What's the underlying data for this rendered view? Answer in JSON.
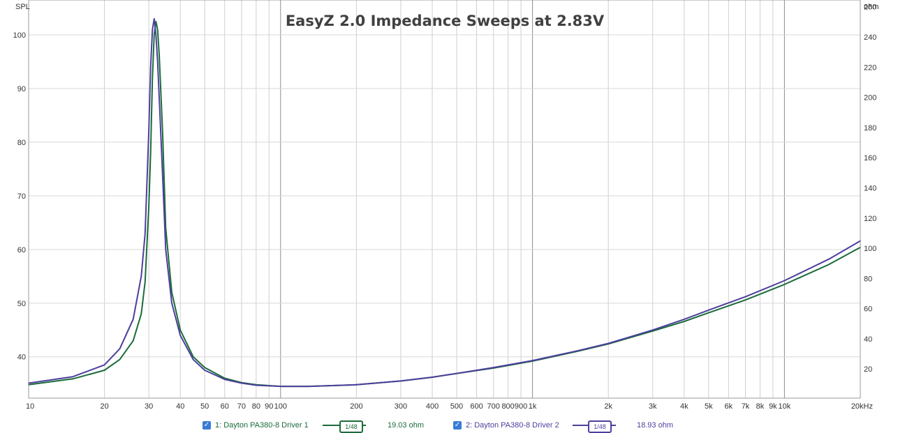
{
  "chart_data": {
    "type": "line",
    "title": "EasyZ 2.0 Impedance Sweeps at 2.83V",
    "left_axis": {
      "label": "SPL",
      "ylim": [
        32.3,
        106.5
      ],
      "ticks": [
        40,
        50,
        60,
        70,
        80,
        90,
        100
      ],
      "tick_labels": [
        "40",
        "50",
        "60",
        "70",
        "80",
        "90",
        "100"
      ]
    },
    "right_axis": {
      "label": "ohm",
      "ylim": [
        0.7,
        264.5
      ],
      "ticks": [
        20,
        40,
        60,
        80,
        100,
        120,
        140,
        160,
        180,
        200,
        220,
        240,
        260
      ],
      "tick_labels": [
        "20",
        "40",
        "60",
        "80",
        "100",
        "120",
        "140",
        "160",
        "180",
        "200",
        "220",
        "240",
        "260"
      ]
    },
    "x_axis": {
      "scale": "log",
      "unit": "Hz",
      "xlim": [
        10,
        20000
      ],
      "labeled_ticks": [
        10,
        20,
        30,
        40,
        50,
        60,
        70,
        80,
        90,
        100,
        200,
        300,
        400,
        500,
        600,
        700,
        800,
        900,
        1000,
        2000,
        3000,
        4000,
        5000,
        6000,
        7000,
        8000,
        9000,
        10000,
        20000
      ],
      "tick_labels": [
        "10",
        "20",
        "30",
        "40",
        "50",
        "60",
        "70",
        "80",
        "90",
        "100",
        "200",
        "300",
        "400",
        "500",
        "600",
        "700",
        "800",
        "900",
        "1k",
        "2k",
        "3k",
        "4k",
        "5k",
        "6k",
        "7k",
        "8k",
        "9k",
        "10k",
        "20kHz"
      ]
    },
    "grid": true,
    "series": [
      {
        "name": "1: Dayton PA380-8 Driver 1",
        "color": "#1a6b3a",
        "smoothing": "1/48",
        "readout": "19.03 ohm",
        "x": [
          10,
          15,
          20,
          23,
          26,
          28,
          29,
          30,
          30.5,
          31,
          31.5,
          32,
          32.5,
          33,
          34,
          35,
          37,
          40,
          45,
          50,
          60,
          70,
          80,
          100,
          130,
          200,
          300,
          400,
          500,
          700,
          1000,
          1500,
          2000,
          3000,
          4000,
          5000,
          7000,
          10000,
          15000,
          20000
        ],
        "y": [
          34.8,
          35.9,
          37.5,
          39.5,
          43,
          48,
          54,
          68,
          78,
          92,
          100,
          102.5,
          101,
          96,
          82,
          64,
          52,
          45,
          40,
          38,
          36,
          35.2,
          34.8,
          34.5,
          34.5,
          34.8,
          35.5,
          36.2,
          36.9,
          37.9,
          39.2,
          41,
          42.4,
          44.8,
          46.6,
          48.2,
          50.6,
          53.5,
          57.2,
          60.4
        ]
      },
      {
        "name": "2: Dayton PA380-8 Driver 2",
        "color": "#4b3f9c",
        "smoothing": "1/48",
        "readout": "18.93 ohm",
        "x": [
          10,
          15,
          20,
          23,
          26,
          28,
          29,
          30,
          30.5,
          31,
          31.5,
          32,
          32.5,
          33,
          34,
          35,
          37,
          40,
          45,
          50,
          60,
          70,
          80,
          100,
          130,
          200,
          300,
          400,
          500,
          700,
          1000,
          1500,
          2000,
          3000,
          4000,
          5000,
          7000,
          10000,
          15000,
          20000
        ],
        "y": [
          35.1,
          36.3,
          38.5,
          41.5,
          47,
          55,
          63,
          82,
          94,
          101,
          103,
          100,
          95,
          88,
          74,
          60,
          50,
          44,
          39.5,
          37.5,
          35.8,
          35.1,
          34.7,
          34.5,
          34.5,
          34.8,
          35.5,
          36.2,
          36.9,
          38,
          39.3,
          41.1,
          42.5,
          45,
          47,
          48.7,
          51.2,
          54.2,
          58.2,
          61.6
        ]
      }
    ]
  },
  "legend": {
    "items": [
      {
        "label": "1: Dayton PA380-8 Driver 1",
        "smoothing": "1/48",
        "readout": "19.03 ohm",
        "color": "#1a6b3a",
        "checked": true
      },
      {
        "label": "2: Dayton PA380-8 Driver 2",
        "smoothing": "1/48",
        "readout": "18.93 ohm",
        "color": "#4b3f9c",
        "checked": true
      }
    ]
  }
}
